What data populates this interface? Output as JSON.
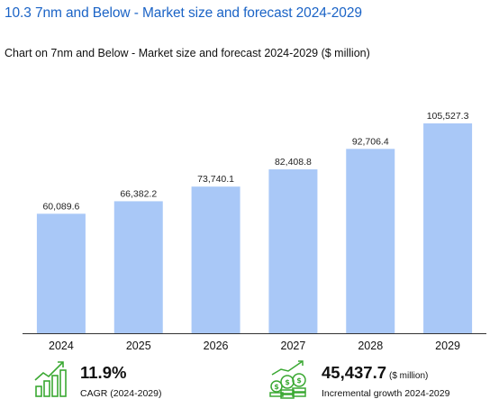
{
  "section_heading": "10.3 7nm and Below - Market size and forecast 2024-2029",
  "chart_title": "Chart on 7nm and Below - Market size and forecast 2024-2029 ($ million)",
  "colors": {
    "bar": "#a9c8f7",
    "heading": "#1a63c6",
    "icon_green": "#3aa832",
    "axis": "#333333"
  },
  "chart_data": {
    "type": "bar",
    "title": "Chart on 7nm and Below - Market size and forecast 2024-2029 ($ million)",
    "categories": [
      "2024",
      "2025",
      "2026",
      "2027",
      "2028",
      "2029"
    ],
    "values": [
      60089.6,
      66382.2,
      73740.1,
      82408.8,
      92706.4,
      105527.3
    ],
    "value_labels": [
      "60,089.6",
      "66,382.2",
      "73,740.1",
      "82,408.8",
      "92,706.4",
      "105,527.3"
    ],
    "ylim": [
      0,
      105527.3
    ],
    "grid": false,
    "legend": "none"
  },
  "stats": {
    "cagr": {
      "value": "11.9%",
      "caption": "CAGR (2024-2029)",
      "icon": "growth-chart-icon"
    },
    "incremental": {
      "value": "45,437.7",
      "unit": "($ million)",
      "caption": "Incremental growth 2024-2029",
      "icon": "money-growth-icon"
    }
  }
}
